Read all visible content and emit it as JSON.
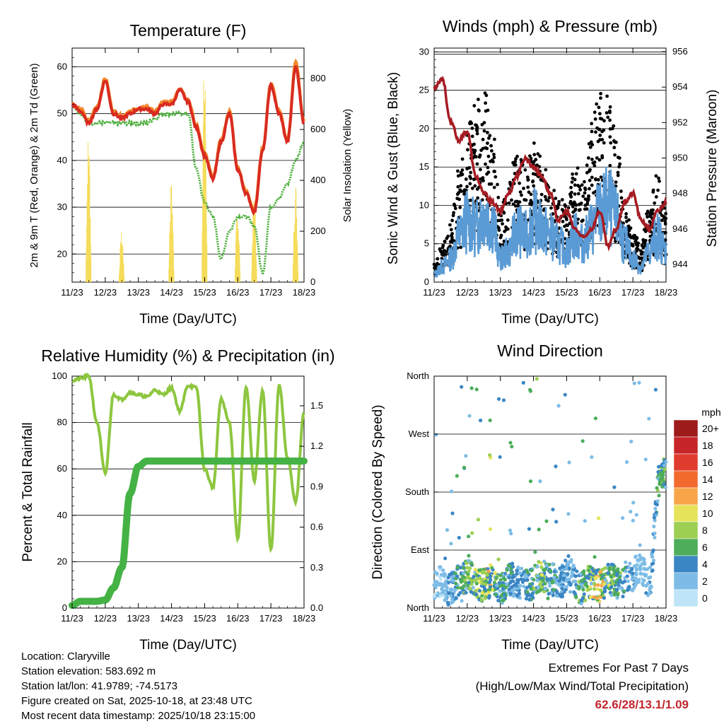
{
  "x_ticks": [
    "11/23",
    "12/23",
    "13/23",
    "14/23",
    "15/23",
    "16/23",
    "17/23",
    "18/23"
  ],
  "x_label": "Time (Day/UTC)",
  "colors": {
    "temp_2m": "#d92b20",
    "temp_9m": "#f28a2e",
    "dewpoint": "#4aad3a",
    "solar": "#f5dc5a",
    "wind": "#5b9bd5",
    "gust": "#000000",
    "pressure": "#a51c23",
    "rh": "#8dc63f",
    "precip": "#44b244",
    "extremes": "#c1272d"
  },
  "wind_legend": {
    "unit": "mph",
    "levels": [
      {
        "label": "20+",
        "color": "#9e1b1b"
      },
      {
        "label": "18",
        "color": "#c6262a"
      },
      {
        "label": "16",
        "color": "#e03c2d"
      },
      {
        "label": "14",
        "color": "#f26a2e"
      },
      {
        "label": "12",
        "color": "#f8a54a"
      },
      {
        "label": "10",
        "color": "#e6e35a"
      },
      {
        "label": "8",
        "color": "#9ccf53"
      },
      {
        "label": "6",
        "color": "#4dad5b"
      },
      {
        "label": "4",
        "color": "#3b86c4"
      },
      {
        "label": "2",
        "color": "#7dbce6"
      },
      {
        "label": "0",
        "color": "#bfe4f7"
      }
    ]
  },
  "footer": {
    "location": "Location: Claryville",
    "elevation": "Station elevation: 583.692 m",
    "latlon": "Station lat/lon: 41.9789; -74.5173",
    "created": "Figure created on Sat, 2025-10-18, at 23:48 UTC",
    "recent": "Most recent data timestamp: 2025/10/18 23:15:00"
  },
  "extremes": {
    "title": "Extremes For Past 7 Days",
    "subtitle": "(High/Low/Max Wind/Total Precipitation)",
    "values": "62.6/28/13.1/1.09"
  },
  "chart_data": [
    {
      "type": "line",
      "title": "Temperature (F)",
      "xlabel": "Time (Day/UTC)",
      "ylabel": "2m & 9m T (Red, Orange) & 2m Td (Green)",
      "ylabel_right": "Solar Insolation (Yellow)",
      "x": [
        0,
        0.25,
        0.5,
        0.75,
        1,
        1.25,
        1.5,
        1.75,
        2,
        2.25,
        2.5,
        2.75,
        3,
        3.25,
        3.5,
        3.75,
        4,
        4.25,
        4.5,
        4.75,
        5,
        5.25,
        5.5,
        5.75,
        6,
        6.25,
        6.5,
        6.75,
        7
      ],
      "xlim": [
        0,
        7
      ],
      "ylim": [
        14,
        64
      ],
      "yticks": [
        20,
        30,
        40,
        50,
        60
      ],
      "y2lim": [
        0,
        920
      ],
      "y2ticks": [
        0,
        200,
        400,
        600,
        800
      ],
      "series": [
        {
          "name": "2m T",
          "axis": "left",
          "values": [
            52,
            50.5,
            48,
            51,
            57,
            50,
            49,
            50,
            51,
            51,
            50,
            52,
            52,
            55,
            52.5,
            47,
            41,
            36,
            44,
            50,
            38,
            33,
            29,
            42,
            56,
            50,
            44,
            60,
            48
          ]
        },
        {
          "name": "9m T",
          "axis": "left",
          "values": [
            52,
            51,
            48.5,
            51.5,
            57.5,
            50.5,
            49.5,
            50.5,
            51,
            51.5,
            50.5,
            52.5,
            52.5,
            55.5,
            53,
            47.5,
            41.5,
            36.5,
            44.5,
            50.5,
            38.5,
            33.5,
            29.5,
            42.5,
            56.5,
            50.5,
            44.5,
            61,
            48.5
          ]
        },
        {
          "name": "2m Td",
          "axis": "left",
          "values": [
            52,
            50,
            48,
            48,
            48,
            48,
            48,
            48,
            48,
            48,
            49,
            50,
            50,
            50,
            50,
            38,
            31,
            28,
            19,
            25,
            28,
            28,
            26,
            16,
            30,
            32,
            35,
            40,
            44
          ]
        },
        {
          "name": "Solar",
          "axis": "right",
          "values": [
            0,
            0,
            600,
            0,
            0,
            0,
            200,
            0,
            0,
            0,
            0,
            0,
            400,
            0,
            0,
            0,
            900,
            0,
            0,
            0,
            300,
            0,
            350,
            0,
            0,
            0,
            0,
            400,
            0
          ]
        }
      ]
    },
    {
      "type": "line",
      "title": "Winds (mph) & Pressure (mb)",
      "xlabel": "Time (Day/UTC)",
      "ylabel": "Sonic Wind & Gust (Blue, Black)",
      "ylabel_right": "Station Pressure (Maroon)",
      "x": [
        0,
        0.25,
        0.5,
        0.75,
        1,
        1.25,
        1.5,
        1.75,
        2,
        2.25,
        2.5,
        2.75,
        3,
        3.25,
        3.5,
        3.75,
        4,
        4.25,
        4.5,
        4.75,
        5,
        5.25,
        5.5,
        5.75,
        6,
        6.25,
        6.5,
        6.75,
        7
      ],
      "xlim": [
        0,
        7
      ],
      "ylim": [
        0,
        30.5
      ],
      "yticks": [
        0,
        5,
        10,
        15,
        20,
        25,
        30
      ],
      "y2lim": [
        943,
        956.2
      ],
      "y2ticks": [
        944,
        946,
        948,
        950,
        952,
        954,
        956
      ],
      "series": [
        {
          "name": "Sonic Wind",
          "axis": "left",
          "values": [
            1,
            2,
            3,
            6,
            8,
            7,
            9,
            8,
            3,
            4,
            7,
            6,
            8,
            7,
            6,
            5,
            4,
            6,
            5,
            7,
            9,
            10,
            8,
            5,
            3,
            2,
            4,
            6,
            4
          ]
        },
        {
          "name": "Gust",
          "axis": "left",
          "values": [
            2,
            4,
            6,
            12,
            16,
            18,
            20,
            16,
            8,
            10,
            14,
            12,
            14,
            13,
            10,
            9,
            8,
            12,
            10,
            16,
            20,
            21,
            15,
            8,
            5,
            4,
            8,
            11,
            7
          ]
        },
        {
          "name": "Pressure",
          "axis": "right",
          "values": [
            954,
            954.5,
            952,
            951,
            951.5,
            949,
            948,
            947.5,
            947,
            948,
            949,
            950,
            949.5,
            949,
            948,
            946.5,
            947,
            946,
            945.5,
            946,
            947,
            945,
            946,
            947.5,
            948,
            946.5,
            946,
            947,
            947.5
          ]
        }
      ]
    },
    {
      "type": "line",
      "title": "Relative Humidity (%) & Precipitation (in)",
      "xlabel": "Time (Day/UTC)",
      "ylabel": "Percent & Total Rainfall",
      "x": [
        0,
        0.25,
        0.5,
        0.75,
        1,
        1.25,
        1.5,
        1.75,
        2,
        2.25,
        2.5,
        2.75,
        3,
        3.25,
        3.5,
        3.75,
        4,
        4.25,
        4.5,
        4.75,
        5,
        5.25,
        5.5,
        5.75,
        6,
        6.25,
        6.5,
        6.75,
        7
      ],
      "xlim": [
        0,
        7
      ],
      "ylim": [
        0,
        100
      ],
      "yticks": [
        0,
        20,
        40,
        60,
        80,
        100
      ],
      "y2lim": [
        0,
        1.72
      ],
      "y2ticks": [
        0.0,
        0.3,
        0.6,
        0.9,
        1.2,
        1.5
      ],
      "series": [
        {
          "name": "RH",
          "axis": "left",
          "values": [
            98,
            99,
            100,
            80,
            58,
            92,
            90,
            93,
            92,
            91,
            94,
            92,
            95,
            85,
            96,
            95,
            60,
            52,
            90,
            80,
            30,
            95,
            55,
            94,
            25,
            96,
            65,
            46,
            84
          ]
        },
        {
          "name": "Precip",
          "axis": "right",
          "values": [
            0.02,
            0.05,
            0.05,
            0.05,
            0.06,
            0.15,
            0.3,
            0.85,
            1.05,
            1.09,
            1.09,
            1.09,
            1.09,
            1.09,
            1.09,
            1.09,
            1.09,
            1.09,
            1.09,
            1.09,
            1.09,
            1.09,
            1.09,
            1.09,
            1.09,
            1.09,
            1.09,
            1.09,
            1.09
          ]
        }
      ]
    },
    {
      "type": "scatter",
      "title": "Wind Direction",
      "xlabel": "Time (Day/UTC)",
      "ylabel": "Direction (Colored By Speed)",
      "xlim": [
        0,
        7
      ],
      "ylim": [
        0,
        360
      ],
      "yticks": [
        0,
        90,
        180,
        270,
        360
      ],
      "ytick_labels": [
        "North",
        "East",
        "South",
        "West",
        "North"
      ],
      "x": [
        0.2,
        0.5,
        0.8,
        1.1,
        1.4,
        1.7,
        2.0,
        2.3,
        2.6,
        2.9,
        3.2,
        3.5,
        3.8,
        4.1,
        4.4,
        4.7,
        5.0,
        5.3,
        5.6,
        5.9,
        6.2,
        6.5,
        6.8,
        6.9
      ],
      "directions": [
        40,
        30,
        45,
        50,
        35,
        40,
        30,
        45,
        40,
        35,
        50,
        45,
        40,
        60,
        30,
        40,
        35,
        45,
        40,
        50,
        60,
        40,
        200,
        210
      ],
      "speeds": [
        2,
        4,
        6,
        8,
        9,
        10,
        6,
        5,
        4,
        6,
        8,
        5,
        4,
        3,
        6,
        9,
        11,
        8,
        6,
        4,
        2,
        3,
        7,
        8
      ]
    }
  ]
}
